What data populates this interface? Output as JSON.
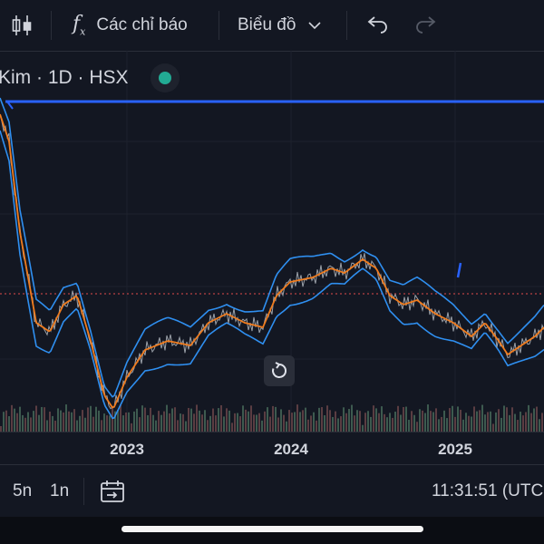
{
  "toolbar": {
    "indicators_label": "Các chỉ báo",
    "chart_type_label": "Biểu đồ",
    "icons": [
      "candles-icon",
      "fx-icon",
      "chevron-down-icon",
      "undo-icon",
      "redo-icon"
    ]
  },
  "symbol": {
    "label": "Kim · 1D · HSX",
    "status_color": "#22ab94"
  },
  "chart": {
    "x_labels": [
      "2023",
      "2024",
      "2025"
    ],
    "colors": {
      "background": "#131722",
      "bands": "#2f8ff0",
      "moving_average": "#f07c1e",
      "price": "#aaaaaa",
      "volume": "#4a4f5c",
      "horizontal_line": "#2962ff",
      "price_line": "#e04b4b"
    }
  },
  "bottom": {
    "range_5y": "5n",
    "range_1y": "1n",
    "time": "11:31:51 (UTC"
  }
}
